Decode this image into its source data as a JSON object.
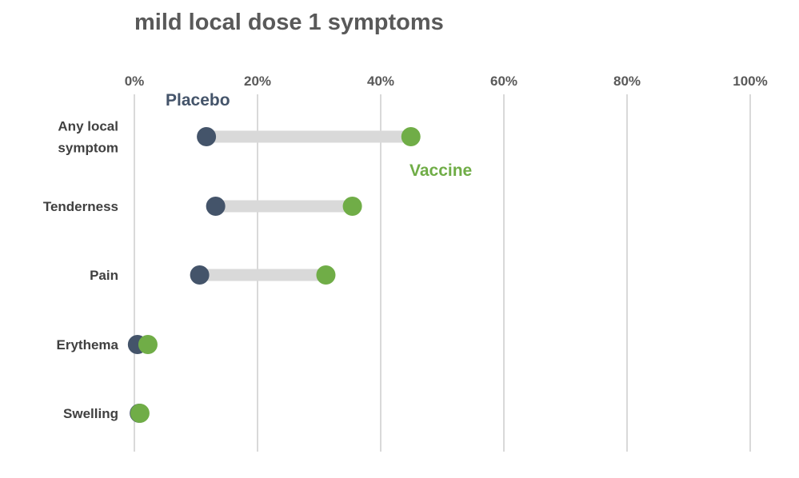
{
  "chart_data": {
    "type": "dot-plot",
    "title": "mild local dose 1 symptoms",
    "x_axis": {
      "ticks": [
        "0%",
        "20%",
        "40%",
        "60%",
        "80%",
        "100%"
      ],
      "range": [
        0,
        100
      ],
      "position": "top"
    },
    "grid": true,
    "categories": [
      [
        "Any local",
        "symptom"
      ],
      [
        "Tenderness"
      ],
      [
        "Pain"
      ],
      [
        "Erythema"
      ],
      [
        "Swelling"
      ]
    ],
    "series": [
      {
        "name": "Placebo",
        "values": [
          11.7,
          13.2,
          10.6,
          0.5,
          0.8
        ],
        "color": "#44546a"
      },
      {
        "name": "Vaccine",
        "values": [
          44.9,
          35.4,
          31.1,
          2.2,
          0.9
        ],
        "color": "#70ad47"
      }
    ],
    "connector_color": "#d9d9d9",
    "legend": "direct labels"
  }
}
